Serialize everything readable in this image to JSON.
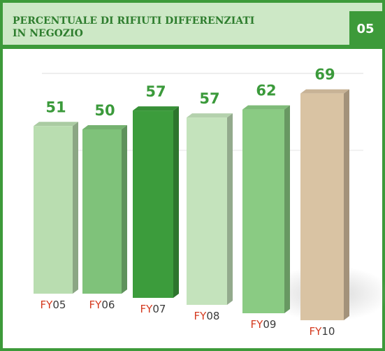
{
  "chart_data": {
    "type": "bar",
    "title_lines": [
      "PERCENTUALE DI RIFIUTI DIFFERENZIATI",
      "IN NEGOZIO"
    ],
    "badge": "05",
    "categories": [
      "FY05",
      "FY06",
      "FY07",
      "FY08",
      "FY09",
      "FY10"
    ],
    "values": [
      51,
      50,
      57,
      57,
      62,
      69
    ],
    "colors": [
      "#b9ddb0",
      "#7fc27a",
      "#3c9c3c",
      "#c4e3bc",
      "#8acb83",
      "#d9c3a3"
    ]
  }
}
